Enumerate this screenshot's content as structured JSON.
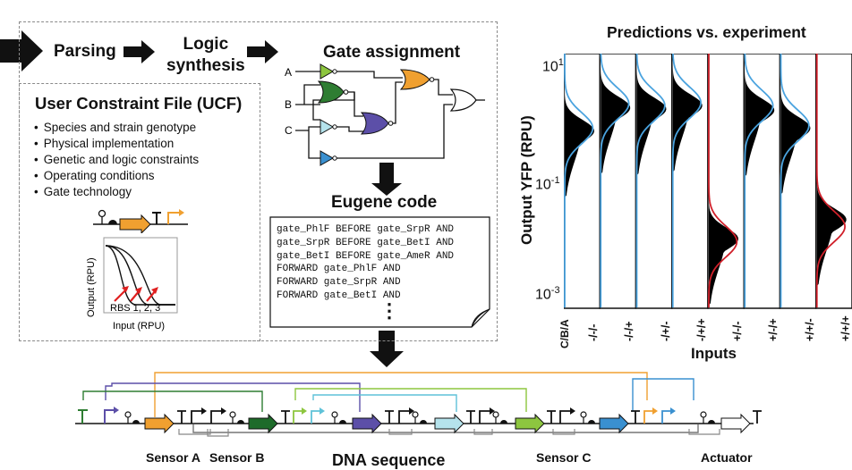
{
  "workflow": {
    "step_parsing": "Parsing",
    "step_logic": [
      "Logic",
      "synthesis"
    ],
    "step_gate_assignment": "Gate assignment",
    "step_eugene": "Eugene code"
  },
  "ucf": {
    "title": "User Constraint File (UCF)",
    "items": [
      "Species and strain genotype",
      "Physical implementation",
      "Genetic and logic constraints",
      "Operating conditions",
      "Gate technology"
    ],
    "plot_ylabel": "Output (RPU)",
    "plot_xlabel": "Input (RPU)",
    "plot_annotation": "RBS 1, 2, 3"
  },
  "gate_inputs": [
    "A",
    "B",
    "C"
  ],
  "eugene_lines": [
    "gate_PhlF BEFORE gate_SrpR AND",
    "gate_SrpR BEFORE gate_BetI AND",
    "gate_BetI BEFORE gate_AmeR AND",
    "FORWARD gate_PhlF AND",
    "FORWARD gate_SrpR AND",
    "FORWARD gate_BetI AND"
  ],
  "eugene_more": "⋮",
  "chart": {
    "title": "Predictions vs. experiment",
    "ylabel": "Output YFP (RPU)",
    "xlabel": "Inputs",
    "row_label": "C/B/A",
    "ytick_labels": [
      {
        "base": "10",
        "exp": "1"
      },
      {
        "base": "10",
        "exp": "-1"
      },
      {
        "base": "10",
        "exp": "-3"
      }
    ],
    "colors": {
      "off": "#d0202a",
      "on": "#4aa3df",
      "hist": "#000000"
    }
  },
  "chart_data": {
    "type": "histogram",
    "title": "Predictions vs. experiment",
    "xlabel": "Inputs",
    "ylabel": "Output YFP (RPU)",
    "yscale": "log",
    "ylim": [
      0.0005,
      20
    ],
    "yticks": [
      10,
      0.1,
      0.001
    ],
    "categories": [
      "-/-/-",
      "-/-/+",
      "-/+/-",
      "-/+/+",
      "+/-/-",
      "+/-/+",
      "+/+/-",
      "+/+/+"
    ],
    "predicted_state": [
      "ON",
      "ON",
      "ON",
      "ON",
      "OFF",
      "ON",
      "ON",
      "OFF"
    ],
    "experimental_median_rpu": [
      0.8,
      2.1,
      2.0,
      2.3,
      0.009,
      1.9,
      0.9,
      0.02
    ],
    "predicted_median_rpu": [
      0.9,
      2.5,
      2.3,
      2.6,
      0.008,
      2.3,
      1.0,
      0.015
    ]
  },
  "dna": {
    "sensor_a": "Sensor A",
    "sensor_b": "Sensor B",
    "dna_sequence": "DNA sequence",
    "sensor_c": "Sensor C",
    "actuator": "Actuator"
  }
}
